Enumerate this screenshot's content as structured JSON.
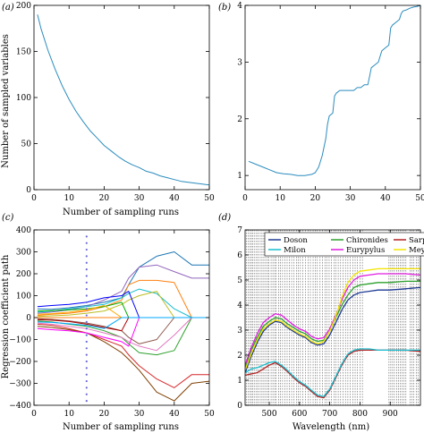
{
  "chart_data": [
    {
      "panel": "(a)",
      "type": "line",
      "xlabel": "Number of sampling runs",
      "ylabel": "Number of sampled variables",
      "xlim": [
        0,
        50
      ],
      "ylim": [
        0,
        200
      ],
      "xticks": [
        "0",
        "10",
        "20",
        "30",
        "40",
        "50"
      ],
      "yticks": [
        "0",
        "50",
        "100",
        "150",
        "200"
      ],
      "grid": false,
      "series": [
        {
          "color": "#2b8cbe",
          "x": [
            1,
            2,
            4,
            6,
            8,
            10,
            12,
            14,
            16,
            18,
            20,
            22,
            24,
            26,
            28,
            30,
            32,
            34,
            36,
            38,
            40,
            42,
            44,
            46,
            48,
            50
          ],
          "y": [
            190,
            175,
            151,
            131,
            113,
            98,
            85,
            74,
            64,
            56,
            48,
            42,
            36,
            31,
            27,
            24,
            20,
            18,
            15,
            13,
            11,
            9,
            8,
            7,
            6,
            5
          ]
        }
      ]
    },
    {
      "panel": "(b)",
      "type": "line",
      "xlabel": "",
      "ylabel": "",
      "xlim": [
        0,
        50
      ],
      "ylim": [
        0.75,
        4.0
      ],
      "xticks": [
        "0",
        "10",
        "20",
        "30",
        "40",
        "50"
      ],
      "yticks": [
        "1",
        "2",
        "3",
        "4"
      ],
      "grid": false,
      "series": [
        {
          "color": "#2b8cbe",
          "x": [
            1,
            3,
            5,
            7,
            9,
            11,
            13,
            15,
            17,
            19,
            20,
            21,
            22,
            23,
            23.5,
            24,
            25,
            25.5,
            26,
            27,
            28,
            29,
            30,
            31,
            32,
            33,
            34,
            35,
            35.5,
            36,
            37,
            38,
            38.5,
            39,
            40,
            41,
            41.5,
            42,
            43,
            44,
            44.5,
            45,
            46,
            47,
            48,
            49,
            50
          ],
          "y": [
            1.25,
            1.2,
            1.15,
            1.1,
            1.05,
            1.03,
            1.02,
            1.0,
            1.0,
            1.02,
            1.05,
            1.15,
            1.35,
            1.65,
            1.9,
            2.05,
            2.1,
            2.4,
            2.45,
            2.5,
            2.5,
            2.5,
            2.5,
            2.5,
            2.55,
            2.55,
            2.6,
            2.6,
            2.75,
            2.9,
            2.95,
            3.0,
            3.1,
            3.2,
            3.25,
            3.3,
            3.6,
            3.65,
            3.7,
            3.75,
            3.85,
            3.9,
            3.92,
            3.95,
            3.97,
            3.98,
            4.0
          ]
        }
      ]
    },
    {
      "panel": "(c)",
      "type": "line",
      "xlabel": "Number of sampling runs",
      "ylabel": "Regression coefficient path",
      "xlim": [
        0,
        50
      ],
      "ylim": [
        -400,
        400
      ],
      "xticks": [
        "0",
        "10",
        "20",
        "30",
        "40",
        "50"
      ],
      "yticks": [
        "−400",
        "−300",
        "−200",
        "−100",
        "0",
        "100",
        "200",
        "300",
        "400"
      ],
      "grid": false,
      "reference_run": 15,
      "series": [
        {
          "color": "#1f77b4",
          "x": [
            1,
            5,
            10,
            15,
            20,
            25,
            27,
            30,
            35,
            40,
            45,
            50
          ],
          "y": [
            40,
            38,
            45,
            55,
            70,
            90,
            150,
            230,
            280,
            300,
            240,
            240
          ]
        },
        {
          "color": "#d62728",
          "x": [
            1,
            5,
            10,
            15,
            20,
            25,
            27,
            30,
            35,
            40,
            45,
            50
          ],
          "y": [
            -30,
            -35,
            -50,
            -70,
            -100,
            -130,
            -170,
            -220,
            -280,
            -320,
            -260,
            -260
          ]
        },
        {
          "color": "#9467bd",
          "x": [
            1,
            5,
            10,
            15,
            20,
            25,
            27,
            30,
            35,
            40,
            45,
            50
          ],
          "y": [
            20,
            25,
            35,
            50,
            80,
            120,
            180,
            230,
            240,
            210,
            180,
            180
          ]
        },
        {
          "color": "#7f3f00",
          "x": [
            1,
            5,
            10,
            15,
            20,
            25,
            27,
            30,
            35,
            40,
            45,
            50
          ],
          "y": [
            -40,
            -45,
            -55,
            -70,
            -110,
            -160,
            -190,
            -240,
            -340,
            -380,
            -300,
            -290
          ]
        },
        {
          "color": "#ff7f0e",
          "x": [
            1,
            5,
            10,
            15,
            20,
            25,
            27,
            30,
            35,
            40,
            45,
            50
          ],
          "y": [
            10,
            15,
            20,
            30,
            50,
            80,
            150,
            170,
            170,
            160,
            0,
            0
          ]
        },
        {
          "color": "#2ca02c",
          "x": [
            1,
            5,
            10,
            15,
            20,
            25,
            27,
            30,
            35,
            40,
            45,
            50
          ],
          "y": [
            -15,
            -20,
            -30,
            -40,
            -60,
            -90,
            -120,
            -160,
            -170,
            -150,
            0,
            0
          ]
        },
        {
          "color": "#17becf",
          "x": [
            1,
            5,
            10,
            15,
            20,
            25,
            27,
            30,
            35,
            40,
            45,
            50
          ],
          "y": [
            25,
            30,
            40,
            50,
            60,
            90,
            110,
            130,
            110,
            40,
            0,
            0
          ]
        },
        {
          "color": "#e377c2",
          "x": [
            1,
            5,
            10,
            15,
            20,
            25,
            27,
            30,
            35,
            40,
            45,
            50
          ],
          "y": [
            -25,
            -30,
            -40,
            -50,
            -70,
            -90,
            -110,
            -130,
            -150,
            -80,
            0,
            0
          ]
        },
        {
          "color": "#bcbd22",
          "x": [
            1,
            5,
            10,
            15,
            20,
            25,
            27,
            30,
            35,
            40,
            45,
            50
          ],
          "y": [
            5,
            8,
            12,
            20,
            30,
            60,
            80,
            100,
            120,
            0,
            0,
            0
          ]
        },
        {
          "color": "#8c564b",
          "x": [
            1,
            5,
            10,
            15,
            20,
            25,
            27,
            30,
            35,
            40,
            45,
            50
          ],
          "y": [
            -5,
            -8,
            -15,
            -25,
            -40,
            -60,
            -90,
            -120,
            -100,
            0,
            0,
            0
          ]
        },
        {
          "color": "#0000ff",
          "x": [
            1,
            5,
            10,
            15,
            20,
            25,
            27,
            30,
            35,
            40,
            45,
            50
          ],
          "y": [
            50,
            55,
            60,
            70,
            90,
            100,
            120,
            0,
            0,
            0,
            0,
            0
          ]
        },
        {
          "color": "#ff00ff",
          "x": [
            1,
            5,
            10,
            15,
            20,
            25,
            27,
            30,
            35,
            40,
            45,
            50
          ],
          "y": [
            -50,
            -55,
            -60,
            -70,
            -90,
            -110,
            -130,
            0,
            0,
            0,
            0,
            0
          ]
        },
        {
          "color": "#00aa00",
          "x": [
            1,
            5,
            10,
            15,
            20,
            25,
            27,
            30,
            35,
            40,
            45,
            50
          ],
          "y": [
            30,
            32,
            35,
            40,
            50,
            70,
            0,
            0,
            0,
            0,
            0,
            0
          ]
        },
        {
          "color": "#aa0000",
          "x": [
            1,
            5,
            10,
            15,
            20,
            25,
            27,
            30,
            35,
            40,
            45,
            50
          ],
          "y": [
            -10,
            -12,
            -18,
            -30,
            -45,
            -60,
            0,
            0,
            0,
            0,
            0,
            0
          ]
        },
        {
          "color": "#ffaa00",
          "x": [
            1,
            5,
            10,
            15,
            20,
            25,
            27,
            30,
            35,
            40,
            45,
            50
          ],
          "y": [
            15,
            18,
            25,
            35,
            55,
            0,
            0,
            0,
            0,
            0,
            0,
            0
          ]
        },
        {
          "color": "#00aaff",
          "x": [
            1,
            5,
            10,
            15,
            20,
            25,
            27,
            30,
            35,
            40,
            45,
            50
          ],
          "y": [
            -20,
            -22,
            -28,
            -35,
            -50,
            0,
            0,
            0,
            0,
            0,
            0,
            0
          ]
        }
      ]
    },
    {
      "panel": "(d)",
      "type": "line",
      "xlabel": "Wavelength (nm)",
      "ylabel": "",
      "xlim": [
        420,
        1000
      ],
      "ylim": [
        0,
        7
      ],
      "xticks": [
        "500",
        "600",
        "700",
        "800",
        "900"
      ],
      "xtick_values": [
        500,
        600,
        700,
        800,
        900
      ],
      "yticks": [
        "0",
        "1",
        "2",
        "3",
        "4",
        "5",
        "6",
        "7"
      ],
      "legend_placement": "top",
      "grid": false,
      "selected_wavelengths": [
        425,
        430,
        436,
        441,
        446,
        452,
        458,
        463,
        470,
        476,
        482,
        488,
        494,
        499,
        506,
        512,
        518,
        523,
        531,
        537,
        544,
        552,
        559,
        567,
        574,
        582,
        590,
        596,
        603,
        611,
        620,
        628,
        636,
        645,
        652,
        659,
        668,
        676,
        684,
        690,
        698,
        706,
        714,
        721,
        728,
        736,
        744,
        752,
        760,
        768,
        776,
        784,
        792,
        800,
        808,
        896,
        902,
        908,
        914,
        922,
        928,
        934,
        940,
        946,
        952,
        966,
        972,
        978,
        986,
        992
      ],
      "series": [
        {
          "name": "Doson",
          "color": "#1f3a93",
          "x": [
            420,
            440,
            460,
            480,
            500,
            520,
            540,
            560,
            580,
            600,
            620,
            640,
            660,
            680,
            700,
            720,
            740,
            760,
            780,
            800,
            830,
            860,
            900,
            950,
            1000
          ],
          "y": [
            1.3,
            1.95,
            2.5,
            2.95,
            3.2,
            3.35,
            3.3,
            3.1,
            2.95,
            2.8,
            2.7,
            2.5,
            2.4,
            2.45,
            2.8,
            3.3,
            3.8,
            4.2,
            4.4,
            4.5,
            4.55,
            4.6,
            4.6,
            4.65,
            4.7
          ]
        },
        {
          "name": "Chironides",
          "color": "#2ca02c",
          "x": [
            420,
            440,
            460,
            480,
            500,
            520,
            540,
            560,
            580,
            600,
            620,
            640,
            660,
            680,
            700,
            720,
            740,
            760,
            780,
            800,
            830,
            860,
            900,
            950,
            1000
          ],
          "y": [
            1.5,
            2.2,
            2.7,
            3.15,
            3.35,
            3.5,
            3.45,
            3.25,
            3.1,
            2.95,
            2.85,
            2.65,
            2.55,
            2.6,
            2.95,
            3.5,
            4.0,
            4.4,
            4.7,
            4.8,
            4.85,
            4.9,
            4.9,
            4.95,
            4.95
          ]
        },
        {
          "name": "Sarpedon",
          "color": "#b22222",
          "x": [
            420,
            440,
            460,
            480,
            500,
            520,
            540,
            560,
            580,
            600,
            620,
            640,
            660,
            680,
            700,
            720,
            740,
            760,
            780,
            800,
            830,
            860,
            900,
            950,
            1000
          ],
          "y": [
            1.2,
            1.25,
            1.3,
            1.45,
            1.6,
            1.7,
            1.55,
            1.35,
            1.1,
            0.9,
            0.75,
            0.55,
            0.35,
            0.3,
            0.6,
            1.1,
            1.6,
            2.0,
            2.15,
            2.2,
            2.2,
            2.2,
            2.2,
            2.2,
            2.15
          ]
        },
        {
          "name": "Milon",
          "color": "#17becf",
          "x": [
            420,
            440,
            460,
            480,
            500,
            520,
            540,
            560,
            580,
            600,
            620,
            640,
            660,
            680,
            700,
            720,
            740,
            760,
            780,
            800,
            830,
            860,
            900,
            950,
            1000
          ],
          "y": [
            1.3,
            1.45,
            1.5,
            1.6,
            1.7,
            1.75,
            1.6,
            1.4,
            1.15,
            0.95,
            0.8,
            0.6,
            0.4,
            0.35,
            0.65,
            1.15,
            1.65,
            2.05,
            2.2,
            2.25,
            2.25,
            2.2,
            2.2,
            2.2,
            2.2
          ]
        },
        {
          "name": "Eurypylus",
          "color": "#e01ee0",
          "x": [
            420,
            440,
            460,
            480,
            500,
            520,
            540,
            560,
            580,
            600,
            620,
            640,
            660,
            680,
            700,
            720,
            740,
            760,
            780,
            800,
            830,
            860,
            900,
            950,
            1000
          ],
          "y": [
            1.6,
            2.3,
            2.85,
            3.3,
            3.5,
            3.65,
            3.6,
            3.4,
            3.2,
            3.05,
            2.95,
            2.75,
            2.65,
            2.7,
            3.05,
            3.6,
            4.2,
            4.7,
            5.0,
            5.15,
            5.2,
            5.25,
            5.25,
            5.25,
            5.2
          ]
        },
        {
          "name": "Meyeri",
          "color": "#f4e400",
          "x": [
            420,
            440,
            460,
            480,
            500,
            520,
            540,
            560,
            580,
            600,
            620,
            640,
            660,
            680,
            700,
            720,
            740,
            760,
            780,
            800,
            830,
            860,
            900,
            950,
            1000
          ],
          "y": [
            1.4,
            2.05,
            2.6,
            3.05,
            3.25,
            3.4,
            3.35,
            3.15,
            3.0,
            2.85,
            2.75,
            2.55,
            2.45,
            2.55,
            2.95,
            3.55,
            4.3,
            4.9,
            5.2,
            5.35,
            5.4,
            5.45,
            5.45,
            5.45,
            5.45
          ]
        }
      ]
    }
  ]
}
